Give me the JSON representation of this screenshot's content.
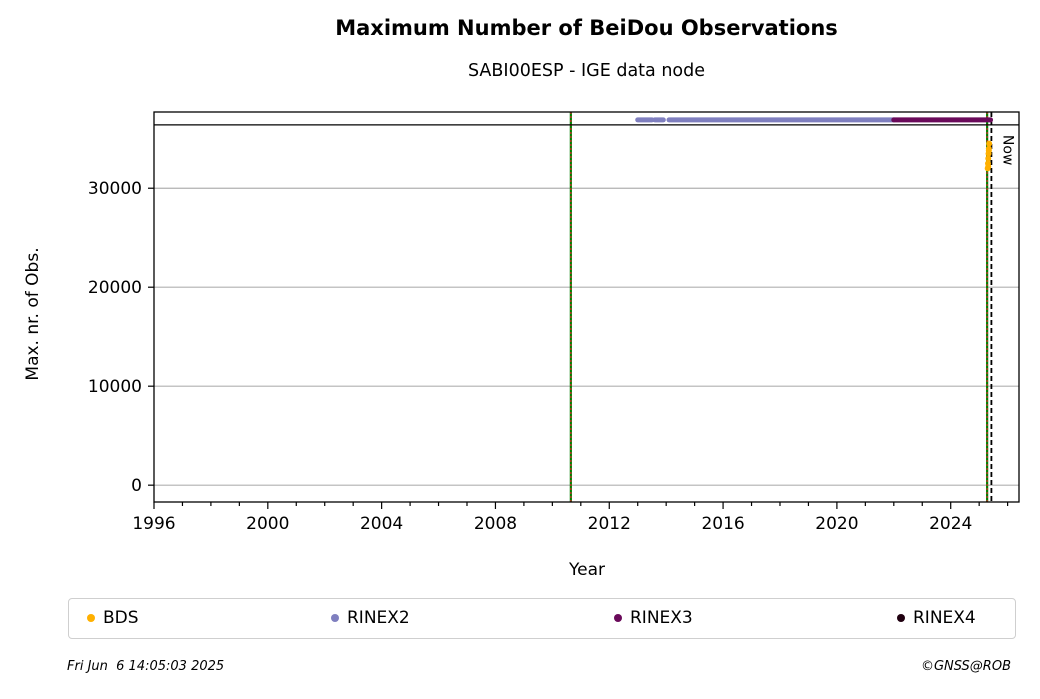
{
  "chart_data": {
    "type": "scatter",
    "title": "Maximum Number of BeiDou Observations",
    "subtitle": "SABI00ESP - IGE data node",
    "xlabel": "Year",
    "ylabel": "Max. nr. of Obs.",
    "xlim": [
      1996.0,
      2026.4
    ],
    "ylim": [
      -1700,
      37700
    ],
    "x_ticks": [
      1996,
      2000,
      2004,
      2008,
      2012,
      2016,
      2020,
      2024
    ],
    "y_ticks": [
      0,
      10000,
      20000,
      30000
    ],
    "grid": "horizontal",
    "legend_position": "bottom",
    "top_band_y": 36400,
    "vertical_markers": [
      {
        "x": 2010.65,
        "color": "#008000",
        "overlay_color": "#d62728",
        "style": "dotted-over-solid"
      },
      {
        "x": 2025.28,
        "color": "#008000",
        "overlay_color": "#d62728",
        "style": "dotted-over-solid"
      },
      {
        "x": 2025.43,
        "color": "#000000",
        "style": "dashed",
        "label": "Now"
      }
    ],
    "series": [
      {
        "name": "BDS",
        "color": "#ffb000",
        "points": [
          [
            2025.3,
            32000
          ],
          [
            2025.31,
            32500
          ],
          [
            2025.32,
            33000
          ],
          [
            2025.33,
            33500
          ],
          [
            2025.34,
            34000
          ],
          [
            2025.35,
            34500
          ],
          [
            2025.32,
            32200
          ],
          [
            2025.34,
            33800
          ]
        ]
      },
      {
        "name": "RINEX2",
        "color": "#7f7fbf",
        "segments": [
          [
            2013.0,
            2013.5
          ],
          [
            2013.6,
            2013.9
          ],
          [
            2014.1,
            2022.0
          ]
        ],
        "y": 36900
      },
      {
        "name": "RINEX3",
        "color": "#6a0a5a",
        "segments": [
          [
            2022.0,
            2025.4
          ]
        ],
        "y": 36900
      },
      {
        "name": "RINEX4",
        "color": "#200010",
        "segments": [],
        "y": 36900
      }
    ]
  },
  "footer": {
    "timestamp": "Fri Jun  6 14:05:03 2025",
    "credit": "©GNSS@ROB"
  }
}
